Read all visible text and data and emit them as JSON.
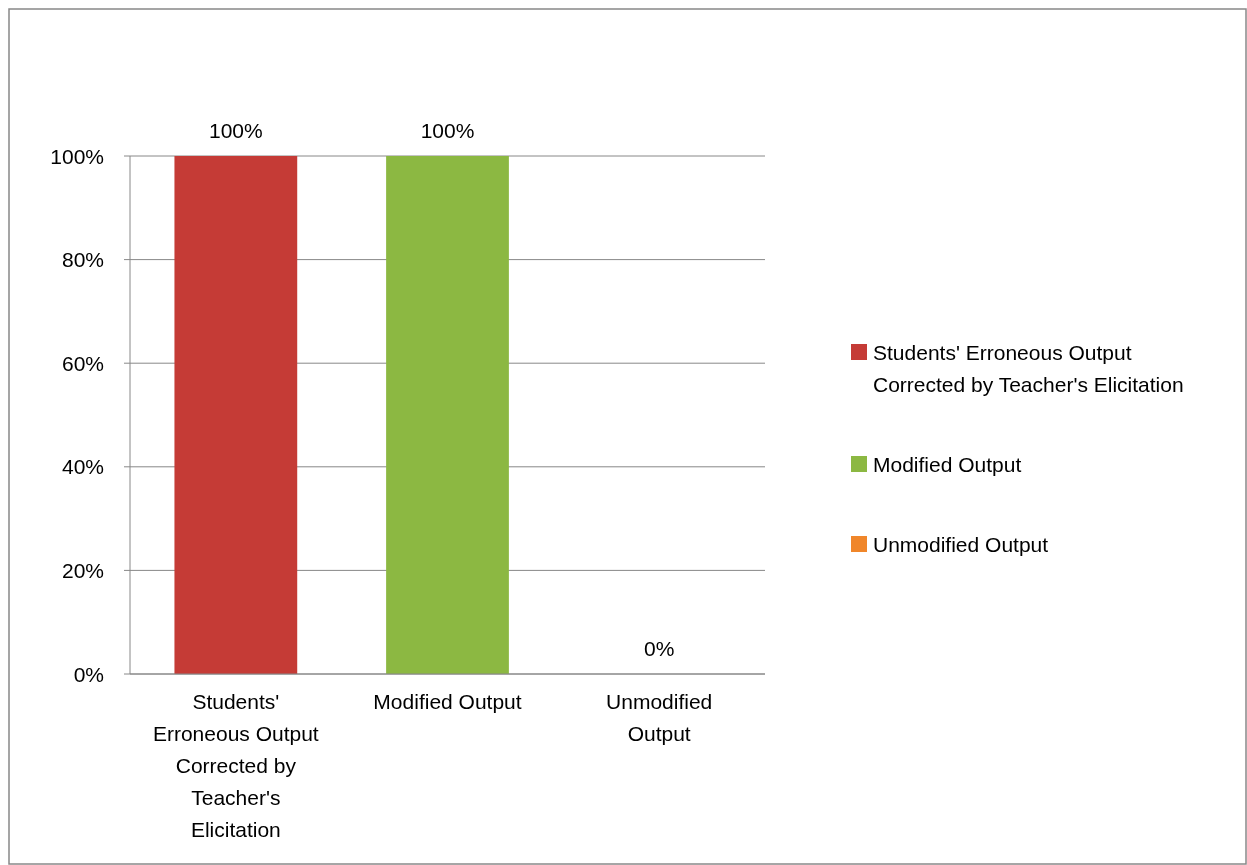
{
  "chart_data": {
    "type": "bar",
    "categories": [
      "Students' Erroneous Output Corrected by Teacher's Elicitation",
      "Modified Output",
      "Unmodified Output"
    ],
    "series": [
      {
        "name": "Students' Erroneous Output Corrected by Teacher's Elicitation",
        "color": "#c53b36",
        "values": [
          100,
          null,
          null
        ],
        "value_labels": [
          "100%",
          null,
          null
        ]
      },
      {
        "name": "Modified Output",
        "color": "#8cb842",
        "values": [
          null,
          100,
          null
        ],
        "value_labels": [
          null,
          "100%",
          null
        ]
      },
      {
        "name": "Unmodified Output",
        "color": "#f0862a",
        "values": [
          null,
          null,
          0
        ],
        "value_labels": [
          null,
          null,
          "0%"
        ]
      }
    ],
    "ylim": [
      0,
      100
    ],
    "yticks": [
      {
        "value": 0,
        "label": "0%"
      },
      {
        "value": 20,
        "label": "20%"
      },
      {
        "value": 40,
        "label": "40%"
      },
      {
        "value": 60,
        "label": "60%"
      },
      {
        "value": 80,
        "label": "80%"
      },
      {
        "value": 100,
        "label": "100%"
      }
    ],
    "grid": "y",
    "legend": "right"
  }
}
